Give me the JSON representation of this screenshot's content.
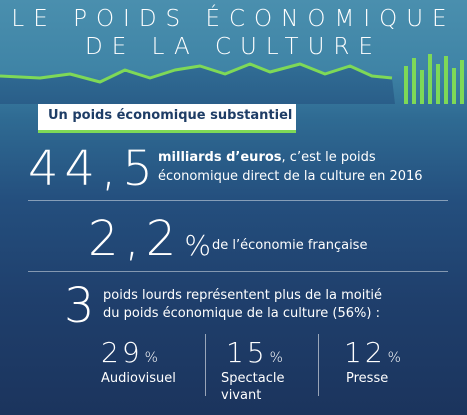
{
  "title": {
    "line1": "LE POIDS ÉCONOMIQUE",
    "line2": "DE LA CULTURE"
  },
  "subtitle": "Un poids économique substantiel",
  "stat1": {
    "value": "44,5",
    "bold": "milliards d’euros",
    "rest": ", c’est le poids",
    "line2": "économique direct de la culture en 2016"
  },
  "stat2": {
    "value": "2,2",
    "unit": "%",
    "text": "de l’économie française"
  },
  "stat3": {
    "value": "3",
    "line1": "poids lourds représentent plus de la moitié",
    "line2": "du poids économique de la culture (56%) :"
  },
  "sectors": [
    {
      "value": "29",
      "unit": "%",
      "label": "Audiovisuel",
      "label2": ""
    },
    {
      "value": "15",
      "unit": "%",
      "label": "Spectacle",
      "label2": "vivant"
    },
    {
      "value": "12",
      "unit": "%",
      "label": "Presse",
      "label2": ""
    }
  ],
  "colors": {
    "accent": "#7ed957",
    "bg_top": "#4a8fae",
    "bg_bottom": "#1b345d",
    "subtitle_text": "#1e3d66"
  }
}
